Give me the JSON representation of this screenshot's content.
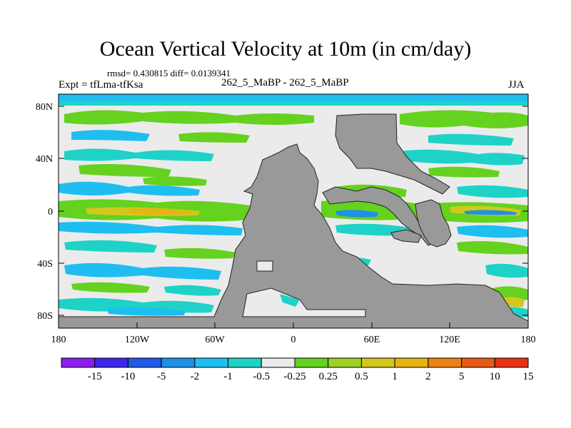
{
  "header": {
    "title": "Ocean Vertical Velocity at 10m (in cm/day)",
    "stats": "rmsd= 0.430815 diff= 0.0139341",
    "expt": "Expt = tfLma-tfKsa",
    "center_label": "262_5_MaBP - 262_5_MaBP",
    "season": "JJA"
  },
  "map": {
    "y_ticks": [
      "80N",
      "40N",
      "0",
      "40S",
      "80S"
    ],
    "x_ticks": [
      "180",
      "120W",
      "60W",
      "0",
      "60E",
      "120E",
      "180"
    ]
  },
  "colorbar": {
    "colors": [
      "#8c1eeb",
      "#3c28e6",
      "#1e5ae6",
      "#1e91e6",
      "#1ebef0",
      "#1ed2c8",
      "#ebebeb",
      "#64d21e",
      "#9bd228",
      "#d2c81e",
      "#e6b414",
      "#eb8214",
      "#e65a14",
      "#e63214"
    ],
    "labels": [
      "-15",
      "-10",
      "-5",
      "-2",
      "-1",
      "-0.5",
      "-0.25",
      "0.25",
      "0.5",
      "1",
      "2",
      "5",
      "10",
      "15"
    ]
  },
  "colors": {
    "land": "#999999",
    "ocean_neutral": "#ebebeb",
    "green": "#64d21e",
    "cyan": "#1ed2c8",
    "light_blue": "#1ebef0",
    "yellow": "#d2c81e",
    "orange": "#e6b414"
  }
}
